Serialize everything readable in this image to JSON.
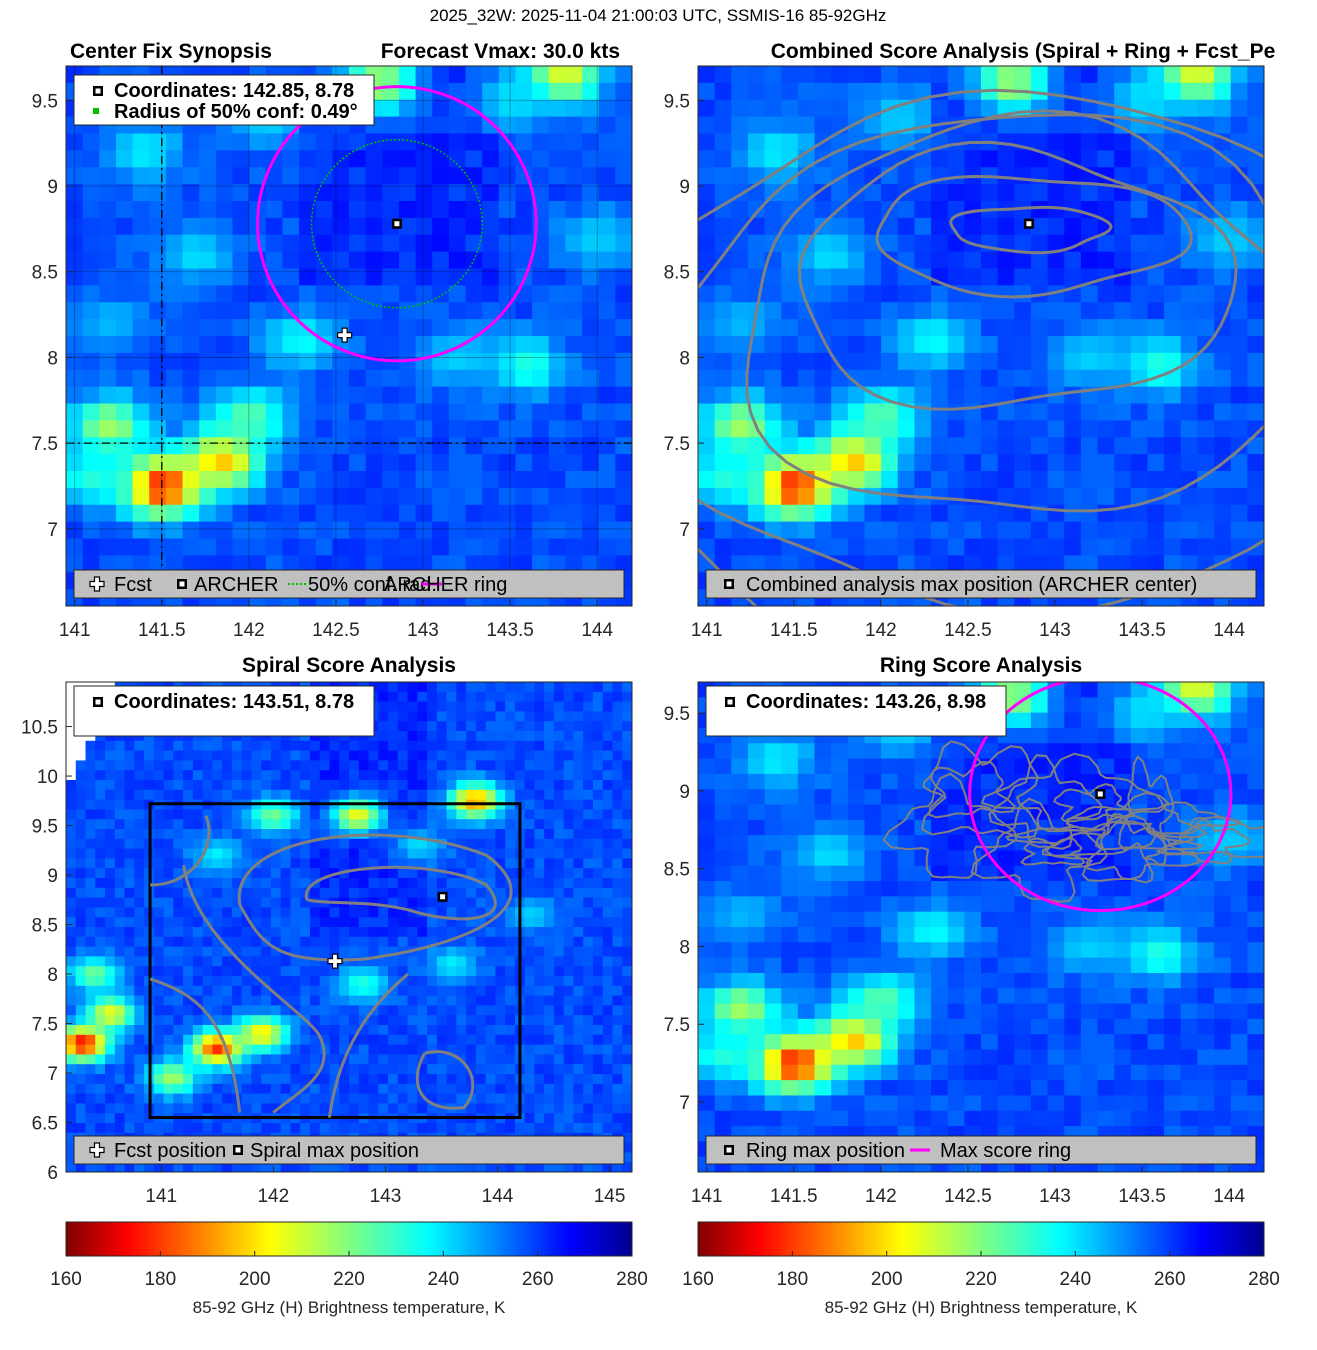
{
  "suptitle": "2025_32W: 2025-11-04 21:00:03 UTC, SSMIS-16 85-92GHz",
  "chart_data": [
    {
      "type": "heatmap",
      "panel": "center-fix",
      "title_left": "Center Fix Synopsis",
      "title_right": "Forecast Vmax: 30.0 kts",
      "xlim": [
        140.95,
        144.2
      ],
      "ylim": [
        6.55,
        9.7
      ],
      "xticks": [
        141,
        141.5,
        142,
        142.5,
        143,
        143.5,
        144
      ],
      "xticklabels": [
        "141",
        "141.5",
        "142",
        "142.5",
        "143",
        "143.5",
        "144"
      ],
      "yticks": [
        7,
        7.5,
        8,
        8.5,
        9,
        9.5
      ],
      "yticklabels": [
        "7",
        "7.5",
        "8",
        "8.5",
        "9",
        "9.5"
      ],
      "grid": true,
      "info_lines": [
        "Coordinates: 142.85, 8.78",
        "Radius of 50% conf: 0.49°"
      ],
      "legend": [
        "Fcst",
        "ARCHER",
        "50% conf. rad.",
        "ARCHER ring"
      ],
      "legend_placement": "bottom",
      "fcst_position": [
        142.55,
        8.13
      ],
      "center": [
        142.85,
        8.78
      ],
      "conf_radius_deg": 0.49,
      "ring_radius_deg": 0.8,
      "ring_color": "#ff00ff",
      "conf_color": "#00c000",
      "dashed_cross": [
        141.5,
        7.5
      ],
      "blobs": [
        {
          "x": 141.5,
          "y": 7.25,
          "tb": 172
        },
        {
          "x": 141.85,
          "y": 7.4,
          "tb": 195
        },
        {
          "x": 141.2,
          "y": 7.6,
          "tb": 215
        },
        {
          "x": 142.0,
          "y": 7.65,
          "tb": 225
        },
        {
          "x": 141.1,
          "y": 7.3,
          "tb": 232
        },
        {
          "x": 142.3,
          "y": 8.1,
          "tb": 236
        },
        {
          "x": 143.6,
          "y": 7.95,
          "tb": 232
        },
        {
          "x": 143.2,
          "y": 8.0,
          "tb": 242
        },
        {
          "x": 142.75,
          "y": 9.6,
          "tb": 215
        },
        {
          "x": 143.8,
          "y": 9.65,
          "tb": 205
        },
        {
          "x": 143.5,
          "y": 9.5,
          "tb": 240
        },
        {
          "x": 141.4,
          "y": 9.2,
          "tb": 238
        },
        {
          "x": 141.7,
          "y": 8.6,
          "tb": 240
        },
        {
          "x": 142.1,
          "y": 9.4,
          "tb": 242
        },
        {
          "x": 144.0,
          "y": 8.7,
          "tb": 242
        },
        {
          "x": 141.2,
          "y": 8.2,
          "tb": 245
        }
      ]
    },
    {
      "type": "heatmap",
      "panel": "combined",
      "title": "Combined Score Analysis (Spiral + Ring + Fcst_Pe",
      "xlim": [
        140.95,
        144.2
      ],
      "ylim": [
        6.55,
        9.7
      ],
      "xticks": [
        141,
        141.5,
        142,
        142.5,
        143,
        143.5,
        144
      ],
      "xticklabels": [
        "141",
        "141.5",
        "142",
        "142.5",
        "143",
        "143.5",
        "144"
      ],
      "yticks": [
        7,
        7.5,
        8,
        8.5,
        9,
        9.5
      ],
      "yticklabels": [
        "7",
        "7.5",
        "8",
        "8.5",
        "9",
        "9.5"
      ],
      "legend": [
        "Combined analysis max position (ARCHER center)"
      ],
      "legend_placement": "bottom",
      "max_position": [
        142.85,
        8.78
      ],
      "contour_rings": [
        {
          "cx": 142.85,
          "cy": 8.75,
          "rx": 0.45,
          "ry": 0.13
        },
        {
          "cx": 142.85,
          "cy": 8.72,
          "rx": 0.9,
          "ry": 0.34
        },
        {
          "cx": 142.75,
          "cy": 8.45,
          "rx": 1.25,
          "ry": 0.75
        },
        {
          "cx": 142.8,
          "cy": 8.2,
          "rx": 1.6,
          "ry": 1.15
        },
        {
          "cx": 142.7,
          "cy": 7.95,
          "rx": 1.95,
          "ry": 1.45
        },
        {
          "cx": 142.65,
          "cy": 7.8,
          "rx": 2.2,
          "ry": 1.75
        }
      ]
    },
    {
      "type": "heatmap",
      "panel": "spiral",
      "title": "Spiral Score Analysis",
      "xlim": [
        140.15,
        145.2
      ],
      "ylim": [
        6.0,
        10.95
      ],
      "xticks": [
        141,
        142,
        143,
        144,
        145
      ],
      "xticklabels": [
        "141",
        "142",
        "143",
        "144",
        "145"
      ],
      "yticks": [
        6,
        6.5,
        7,
        7.5,
        8,
        8.5,
        9,
        9.5,
        10,
        10.5
      ],
      "yticklabels": [
        "6",
        "6.5",
        "7",
        "7.5",
        "8",
        "8.5",
        "9",
        "9.5",
        "10",
        "10.5"
      ],
      "info_lines": [
        "Coordinates: 143.51, 8.78"
      ],
      "legend": [
        "Fcst position",
        "Spiral max position"
      ],
      "legend_placement": "bottom",
      "fcst_position": [
        142.55,
        8.13
      ],
      "max_position": [
        143.51,
        8.78
      ],
      "search_box": [
        140.9,
        6.55,
        144.2,
        9.72
      ],
      "blobs": [
        {
          "x": 140.3,
          "y": 7.3,
          "tb": 172
        },
        {
          "x": 140.55,
          "y": 7.6,
          "tb": 205
        },
        {
          "x": 140.4,
          "y": 8.0,
          "tb": 222
        },
        {
          "x": 141.5,
          "y": 7.25,
          "tb": 178
        },
        {
          "x": 141.9,
          "y": 7.4,
          "tb": 200
        },
        {
          "x": 141.1,
          "y": 6.95,
          "tb": 215
        },
        {
          "x": 142.8,
          "y": 7.9,
          "tb": 232
        },
        {
          "x": 142.0,
          "y": 9.6,
          "tb": 222
        },
        {
          "x": 142.75,
          "y": 9.6,
          "tb": 205
        },
        {
          "x": 143.8,
          "y": 9.75,
          "tb": 190
        },
        {
          "x": 143.3,
          "y": 9.3,
          "tb": 240
        },
        {
          "x": 141.5,
          "y": 9.2,
          "tb": 238
        },
        {
          "x": 144.3,
          "y": 8.6,
          "tb": 242
        },
        {
          "x": 143.6,
          "y": 8.1,
          "tb": 238
        }
      ]
    },
    {
      "type": "heatmap",
      "panel": "ring",
      "title": "Ring Score Analysis",
      "xlim": [
        140.95,
        144.2
      ],
      "ylim": [
        6.55,
        9.7
      ],
      "xticks": [
        141,
        141.5,
        142,
        142.5,
        143,
        143.5,
        144
      ],
      "xticklabels": [
        "141",
        "141.5",
        "142",
        "142.5",
        "143",
        "143.5",
        "144"
      ],
      "yticks": [
        7,
        7.5,
        8,
        8.5,
        9,
        9.5
      ],
      "yticklabels": [
        "7",
        "7.5",
        "8",
        "8.5",
        "9",
        "9.5"
      ],
      "info_lines": [
        "Coordinates: 143.26, 8.98"
      ],
      "legend": [
        "Ring max position",
        "Max score ring"
      ],
      "legend_placement": "bottom",
      "max_position": [
        143.26,
        8.98
      ],
      "ring_radius_deg": 0.75,
      "ring_color": "#ff00ff"
    }
  ],
  "colorbars": [
    {
      "ticks": [
        160,
        180,
        200,
        220,
        240,
        260,
        280
      ],
      "ticklabels": [
        "160",
        "180",
        "200",
        "220",
        "240",
        "260",
        "280"
      ],
      "label": "85-92 GHz (H) Brightness temperature, K",
      "range": [
        160,
        280
      ],
      "colormap": "jet-reversed"
    },
    {
      "ticks": [
        160,
        180,
        200,
        220,
        240,
        260,
        280
      ],
      "ticklabels": [
        "160",
        "180",
        "200",
        "220",
        "240",
        "260",
        "280"
      ],
      "label": "85-92 GHz (H) Brightness temperature, K",
      "range": [
        160,
        280
      ],
      "colormap": "jet-reversed"
    }
  ]
}
